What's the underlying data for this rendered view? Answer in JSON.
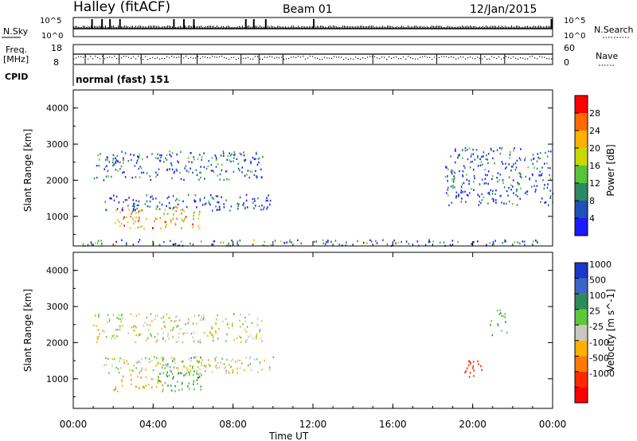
{
  "header": {
    "station": "Halley (fitACF)",
    "beam": "Beam 01",
    "date": "12/Jan/2015"
  },
  "panels": {
    "nsky": {
      "label": "N.Sky",
      "top_tick": "10^5",
      "bottom_tick": "10^0",
      "right_label": "N.Search",
      "right_top": "10^5",
      "right_bottom": "10^0"
    },
    "freq": {
      "label": "Freq.",
      "unit": "[MHz]",
      "top_tick": "18",
      "bottom_tick": "8",
      "right_label": "Nave",
      "right_top": "60",
      "right_bottom": "0"
    },
    "cpid": {
      "label": "CPID",
      "value": "normal (fast) 151"
    }
  },
  "time_axis": {
    "label": "Time UT",
    "ticks": [
      "00:00",
      "04:00",
      "08:00",
      "12:00",
      "16:00",
      "20:00",
      "00:00"
    ]
  },
  "range_ticks": [
    "1000",
    "2000",
    "3000",
    "4000"
  ],
  "range_label": "Slant Range [km]",
  "power_scale": {
    "label": "Power [dB]",
    "ticks": [
      "4",
      "8",
      "12",
      "16",
      "20",
      "24",
      "28"
    ],
    "colors": [
      "#1a1aff",
      "#2050b8",
      "#2e8a64",
      "#59c43a",
      "#c8d900",
      "#ffb000",
      "#ff6a00",
      "#ff0000"
    ]
  },
  "velocity_scale": {
    "label": "Velocity [m s^-1]",
    "ticks": [
      "1000",
      "500",
      "100",
      "25",
      "-25",
      "-100",
      "-500",
      "-1000"
    ],
    "colors": [
      "#1a37c8",
      "#3b66c8",
      "#2e8a5a",
      "#5cc83a",
      "#c8c8c0",
      "#ffb000",
      "#ff7a00",
      "#ff2a00",
      "#ff0000"
    ]
  },
  "chart_data": [
    {
      "type": "heatmap",
      "title": "Power",
      "xlabel": "Time UT",
      "ylabel": "Slant Range [km]",
      "xlim": [
        0,
        24
      ],
      "ylim": [
        180,
        4500
      ],
      "colorbar": "Power [dB]",
      "colorbar_range": [
        0,
        30
      ],
      "echo_regions": [
        {
          "t0": 2.0,
          "t1": 6.4,
          "r0": 650,
          "r1": 1250,
          "value": 20
        },
        {
          "t0": 1.5,
          "t1": 10.0,
          "r0": 1150,
          "r1": 1600,
          "value": 4
        },
        {
          "t0": 1.0,
          "t1": 9.5,
          "r0": 2000,
          "r1": 2800,
          "value": 6
        },
        {
          "t0": 18.6,
          "t1": 24.0,
          "r0": 1300,
          "r1": 2900,
          "value": 6
        },
        {
          "t0": 0.0,
          "t1": 24.0,
          "r0": 180,
          "r1": 350,
          "value": 8
        }
      ]
    },
    {
      "type": "heatmap",
      "title": "Velocity",
      "xlabel": "Time UT",
      "ylabel": "Slant Range [km]",
      "xlim": [
        0,
        24
      ],
      "ylim": [
        180,
        4500
      ],
      "colorbar": "Velocity [m s^-1]",
      "colorbar_range": [
        -1000,
        1000
      ],
      "echo_regions": [
        {
          "t0": 2.0,
          "t1": 4.5,
          "r0": 650,
          "r1": 1100,
          "value": -100
        },
        {
          "t0": 4.2,
          "t1": 6.4,
          "r0": 650,
          "r1": 1600,
          "value": 100
        },
        {
          "t0": 1.0,
          "t1": 9.5,
          "r0": 2000,
          "r1": 2800,
          "value": 0
        },
        {
          "t0": 1.5,
          "t1": 10.0,
          "r0": 1150,
          "r1": 1600,
          "value": 0
        },
        {
          "t0": 19.5,
          "t1": 20.5,
          "r0": 1000,
          "r1": 1500,
          "value": -700
        },
        {
          "t0": 20.8,
          "t1": 21.7,
          "r0": 2200,
          "r1": 2900,
          "value": 100
        }
      ]
    }
  ]
}
